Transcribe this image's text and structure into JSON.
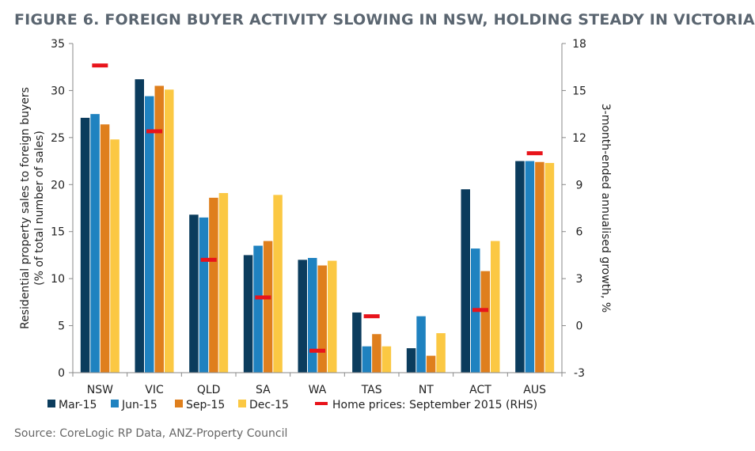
{
  "figure": {
    "title": "FIGURE 6. FOREIGN BUYER ACTIVITY SLOWING IN NSW, HOLDING STEADY IN VICTORIA",
    "source": "Source: CoreLogic RP Data, ANZ-Property Council"
  },
  "colors": {
    "Mar-15": "#0b3c5d",
    "Jun-15": "#1f82c0",
    "Sep-15": "#df7f1d",
    "Dec-15": "#fbc843",
    "home_prices": "#e8141b",
    "axis": "#888888"
  },
  "chart_data": {
    "type": "bar",
    "categories": [
      "NSW",
      "VIC",
      "QLD",
      "SA",
      "WA",
      "TAS",
      "NT",
      "ACT",
      "AUS"
    ],
    "series": [
      {
        "name": "Mar-15",
        "values": [
          27.1,
          31.2,
          16.8,
          12.5,
          12.0,
          6.4,
          2.6,
          19.5,
          22.5
        ]
      },
      {
        "name": "Jun-15",
        "values": [
          27.5,
          29.4,
          16.5,
          13.5,
          12.2,
          2.8,
          6.0,
          13.2,
          22.5
        ]
      },
      {
        "name": "Sep-15",
        "values": [
          26.4,
          30.5,
          18.6,
          14.0,
          11.4,
          4.1,
          1.8,
          10.8,
          22.4
        ]
      },
      {
        "name": "Dec-15",
        "values": [
          24.8,
          30.1,
          19.1,
          18.9,
          11.9,
          2.8,
          4.2,
          14.0,
          22.3
        ]
      }
    ],
    "secondary_series": {
      "name": "Home prices: September 2015 (RHS)",
      "values": [
        16.6,
        12.4,
        4.2,
        1.8,
        -1.6,
        0.6,
        null,
        1.0,
        11.0
      ]
    },
    "ylabel": "Residential property sales to foreign buyers (% of total number of sales)",
    "ylabel_lines": [
      "Residential property sales to foreign buyers",
      "(% of total number of sales)"
    ],
    "y2label": "3-month-ended annualised growth, %",
    "ylim": [
      0,
      35
    ],
    "yticks": [
      "0",
      "5",
      "10",
      "15",
      "20",
      "25",
      "30",
      "35"
    ],
    "y2lim": [
      -3,
      18
    ],
    "y2ticks": [
      "-3",
      "0",
      "3",
      "6",
      "9",
      "12",
      "15",
      "18"
    ],
    "legend": [
      "Mar-15",
      "Jun-15",
      "Sep-15",
      "Dec-15",
      "Home prices: September 2015 (RHS)"
    ],
    "legend_position": "bottom",
    "grid": false
  }
}
